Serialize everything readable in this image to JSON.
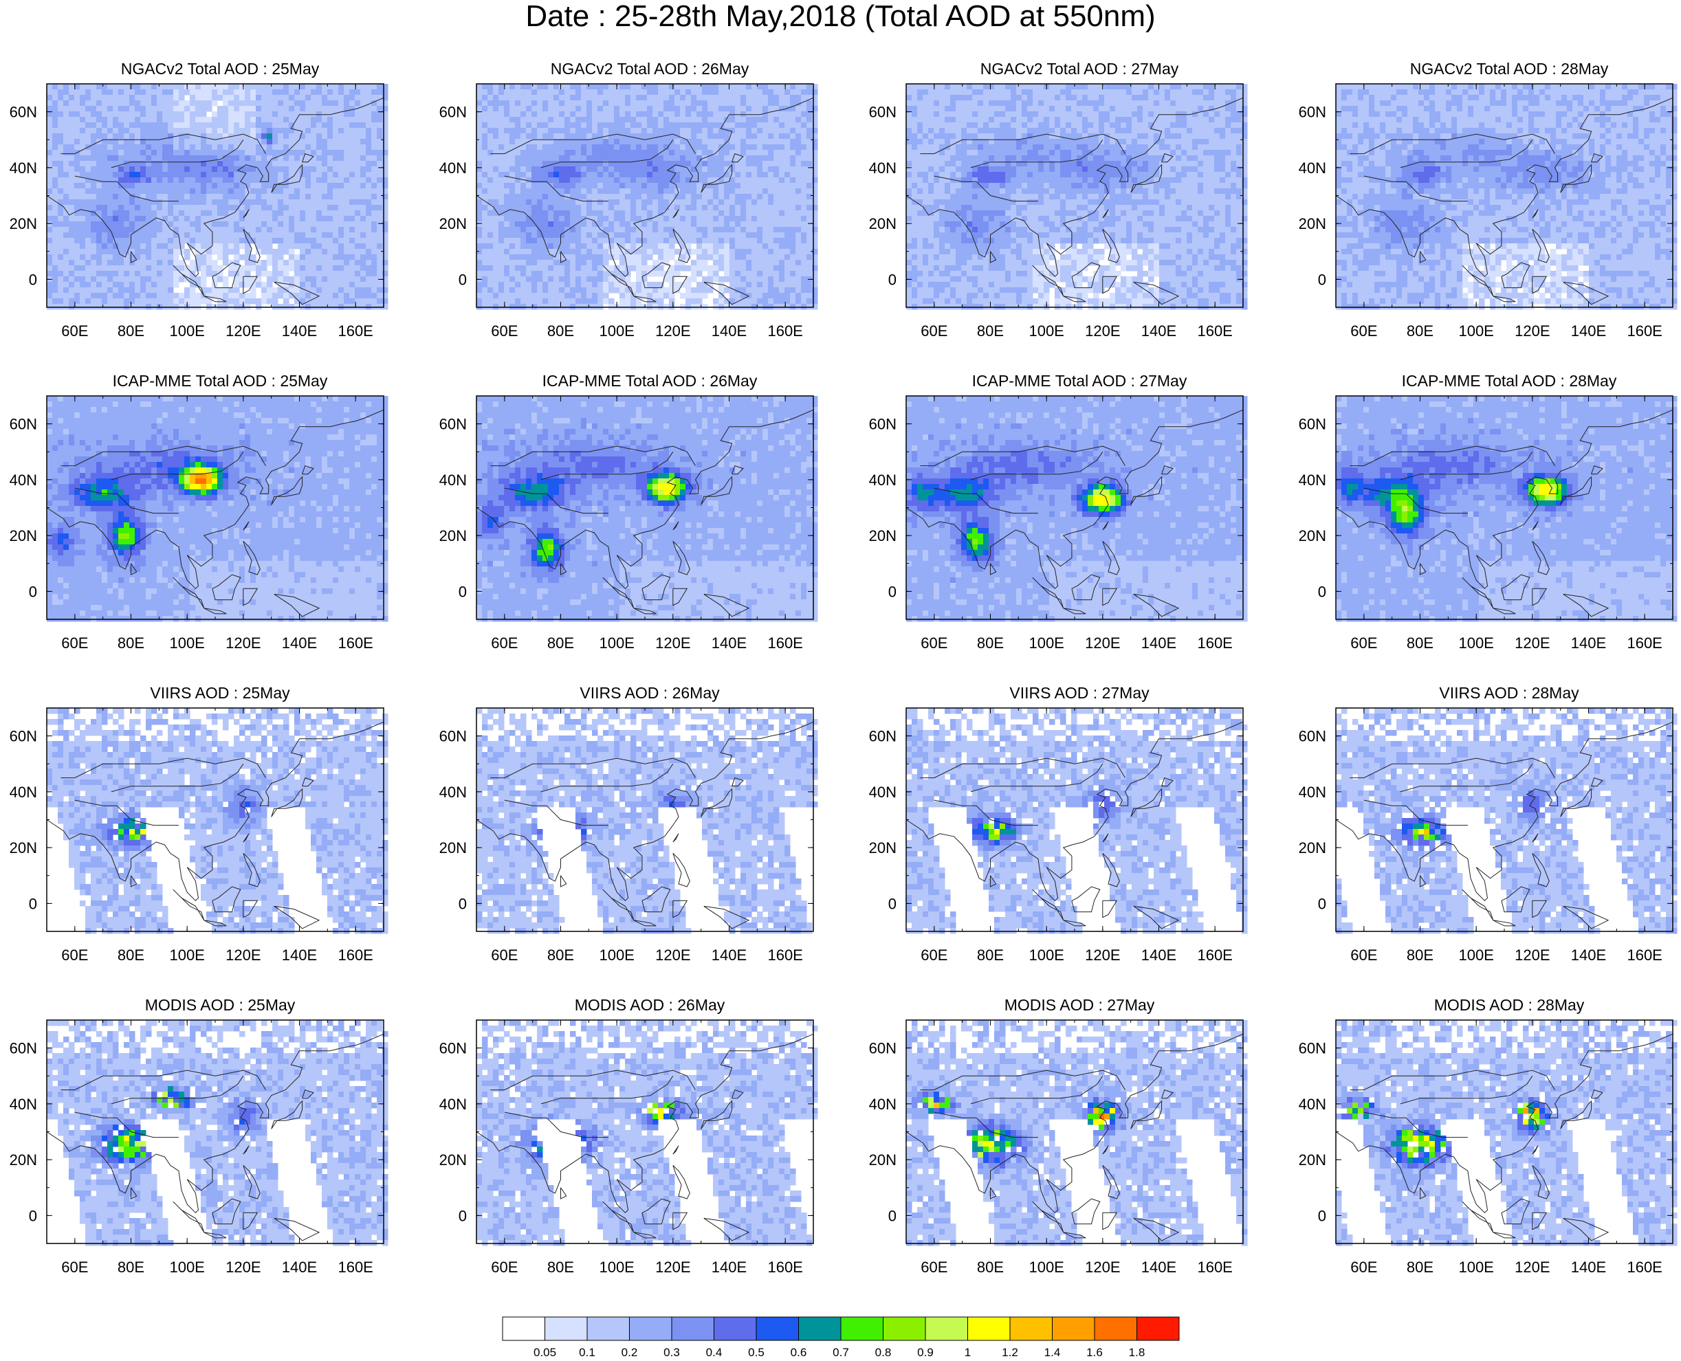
{
  "title": "Date : 25-28th May,2018 (Total AOD at 550nm)",
  "x_ticks": [
    "60E",
    "80E",
    "100E",
    "120E",
    "140E",
    "160E"
  ],
  "y_ticks": [
    "60N",
    "40N",
    "20N",
    "0"
  ],
  "rows": [
    {
      "source": "NGACv2",
      "style": "smooth",
      "titles": [
        "NGACv2 Total AOD : 25May",
        "NGACv2 Total AOD : 26May",
        "NGACv2 Total AOD : 27May",
        "NGACv2 Total AOD : 28May"
      ]
    },
    {
      "source": "ICAP-MME",
      "style": "plume",
      "titles": [
        "ICAP-MME Total AOD : 25May",
        "ICAP-MME Total AOD : 26May",
        "ICAP-MME Total AOD : 27May",
        "ICAP-MME Total AOD : 28May"
      ]
    },
    {
      "source": "VIIRS",
      "style": "swath",
      "titles": [
        "VIIRS AOD : 25May",
        "VIIRS AOD : 26May",
        "VIIRS AOD : 27May",
        "VIIRS AOD : 28May"
      ]
    },
    {
      "source": "MODIS",
      "style": "swath-hot",
      "titles": [
        "MODIS AOD : 25May",
        "MODIS AOD : 26May",
        "MODIS AOD : 27May",
        "MODIS AOD : 28May"
      ]
    }
  ],
  "colorbar": {
    "labels": [
      "0.05",
      "0.1",
      "0.2",
      "0.3",
      "0.4",
      "0.5",
      "0.6",
      "0.7",
      "0.8",
      "0.9",
      "1",
      "1.2",
      "1.4",
      "1.6",
      "1.8"
    ],
    "colors": [
      "#ffffff",
      "#d6e0ff",
      "#b5c6fa",
      "#95acf7",
      "#7b92f2",
      "#5f6cec",
      "#1c5af2",
      "#00949a",
      "#40f000",
      "#8bf000",
      "#c5fa50",
      "#ffff00",
      "#ffc000",
      "#ffa000",
      "#ff7000",
      "#ff1a00"
    ]
  }
}
